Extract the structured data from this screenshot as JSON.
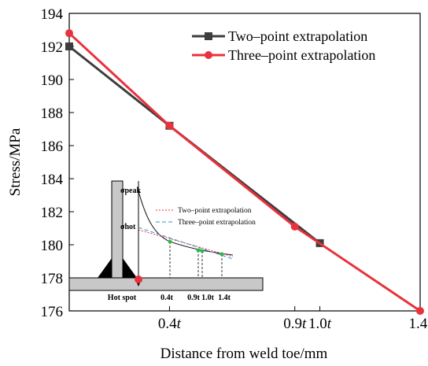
{
  "chart_data": {
    "type": "line",
    "xlabel": "Distance from weld toe/mm",
    "ylabel": "Stress/MPa",
    "ylim": [
      176,
      194
    ],
    "yticks": [
      176,
      178,
      180,
      182,
      184,
      186,
      188,
      190,
      192,
      194
    ],
    "xticks": [
      {
        "value": 0.4,
        "label": "0.4t"
      },
      {
        "value": 0.9,
        "label": "0.9t"
      },
      {
        "value": 1.0,
        "label": "1.0t"
      },
      {
        "value": 1.4,
        "label": "1.4t"
      }
    ],
    "legend_position": "top-right",
    "series": [
      {
        "name": "Two–point extrapolation",
        "color": "#3d3d3d",
        "marker": "square",
        "x": [
          0.0,
          0.4,
          1.0
        ],
        "y": [
          192.0,
          187.2,
          180.1
        ]
      },
      {
        "name": "Three–point extrapolation",
        "color": "#e8323c",
        "marker": "circle",
        "x": [
          0.0,
          0.4,
          0.9,
          1.4
        ],
        "y": [
          192.8,
          187.2,
          181.1,
          176.0
        ]
      }
    ]
  },
  "inset": {
    "sigma_peak": "σpeak",
    "sigma_hot": "σhot",
    "legend_two": "Two–point extrapolation",
    "legend_three": "Three–point extrapolation",
    "hot_spot_label": "Hot spot",
    "tick_labels": [
      "0.4t",
      "0.9t",
      "1.0t",
      "1.4t"
    ],
    "colors": {
      "plate": "#c8c8c8",
      "weld": "#000000",
      "curve": "#222222",
      "red": "#e8323c",
      "blue": "#3a8fd0",
      "green": "#2db84a"
    }
  }
}
